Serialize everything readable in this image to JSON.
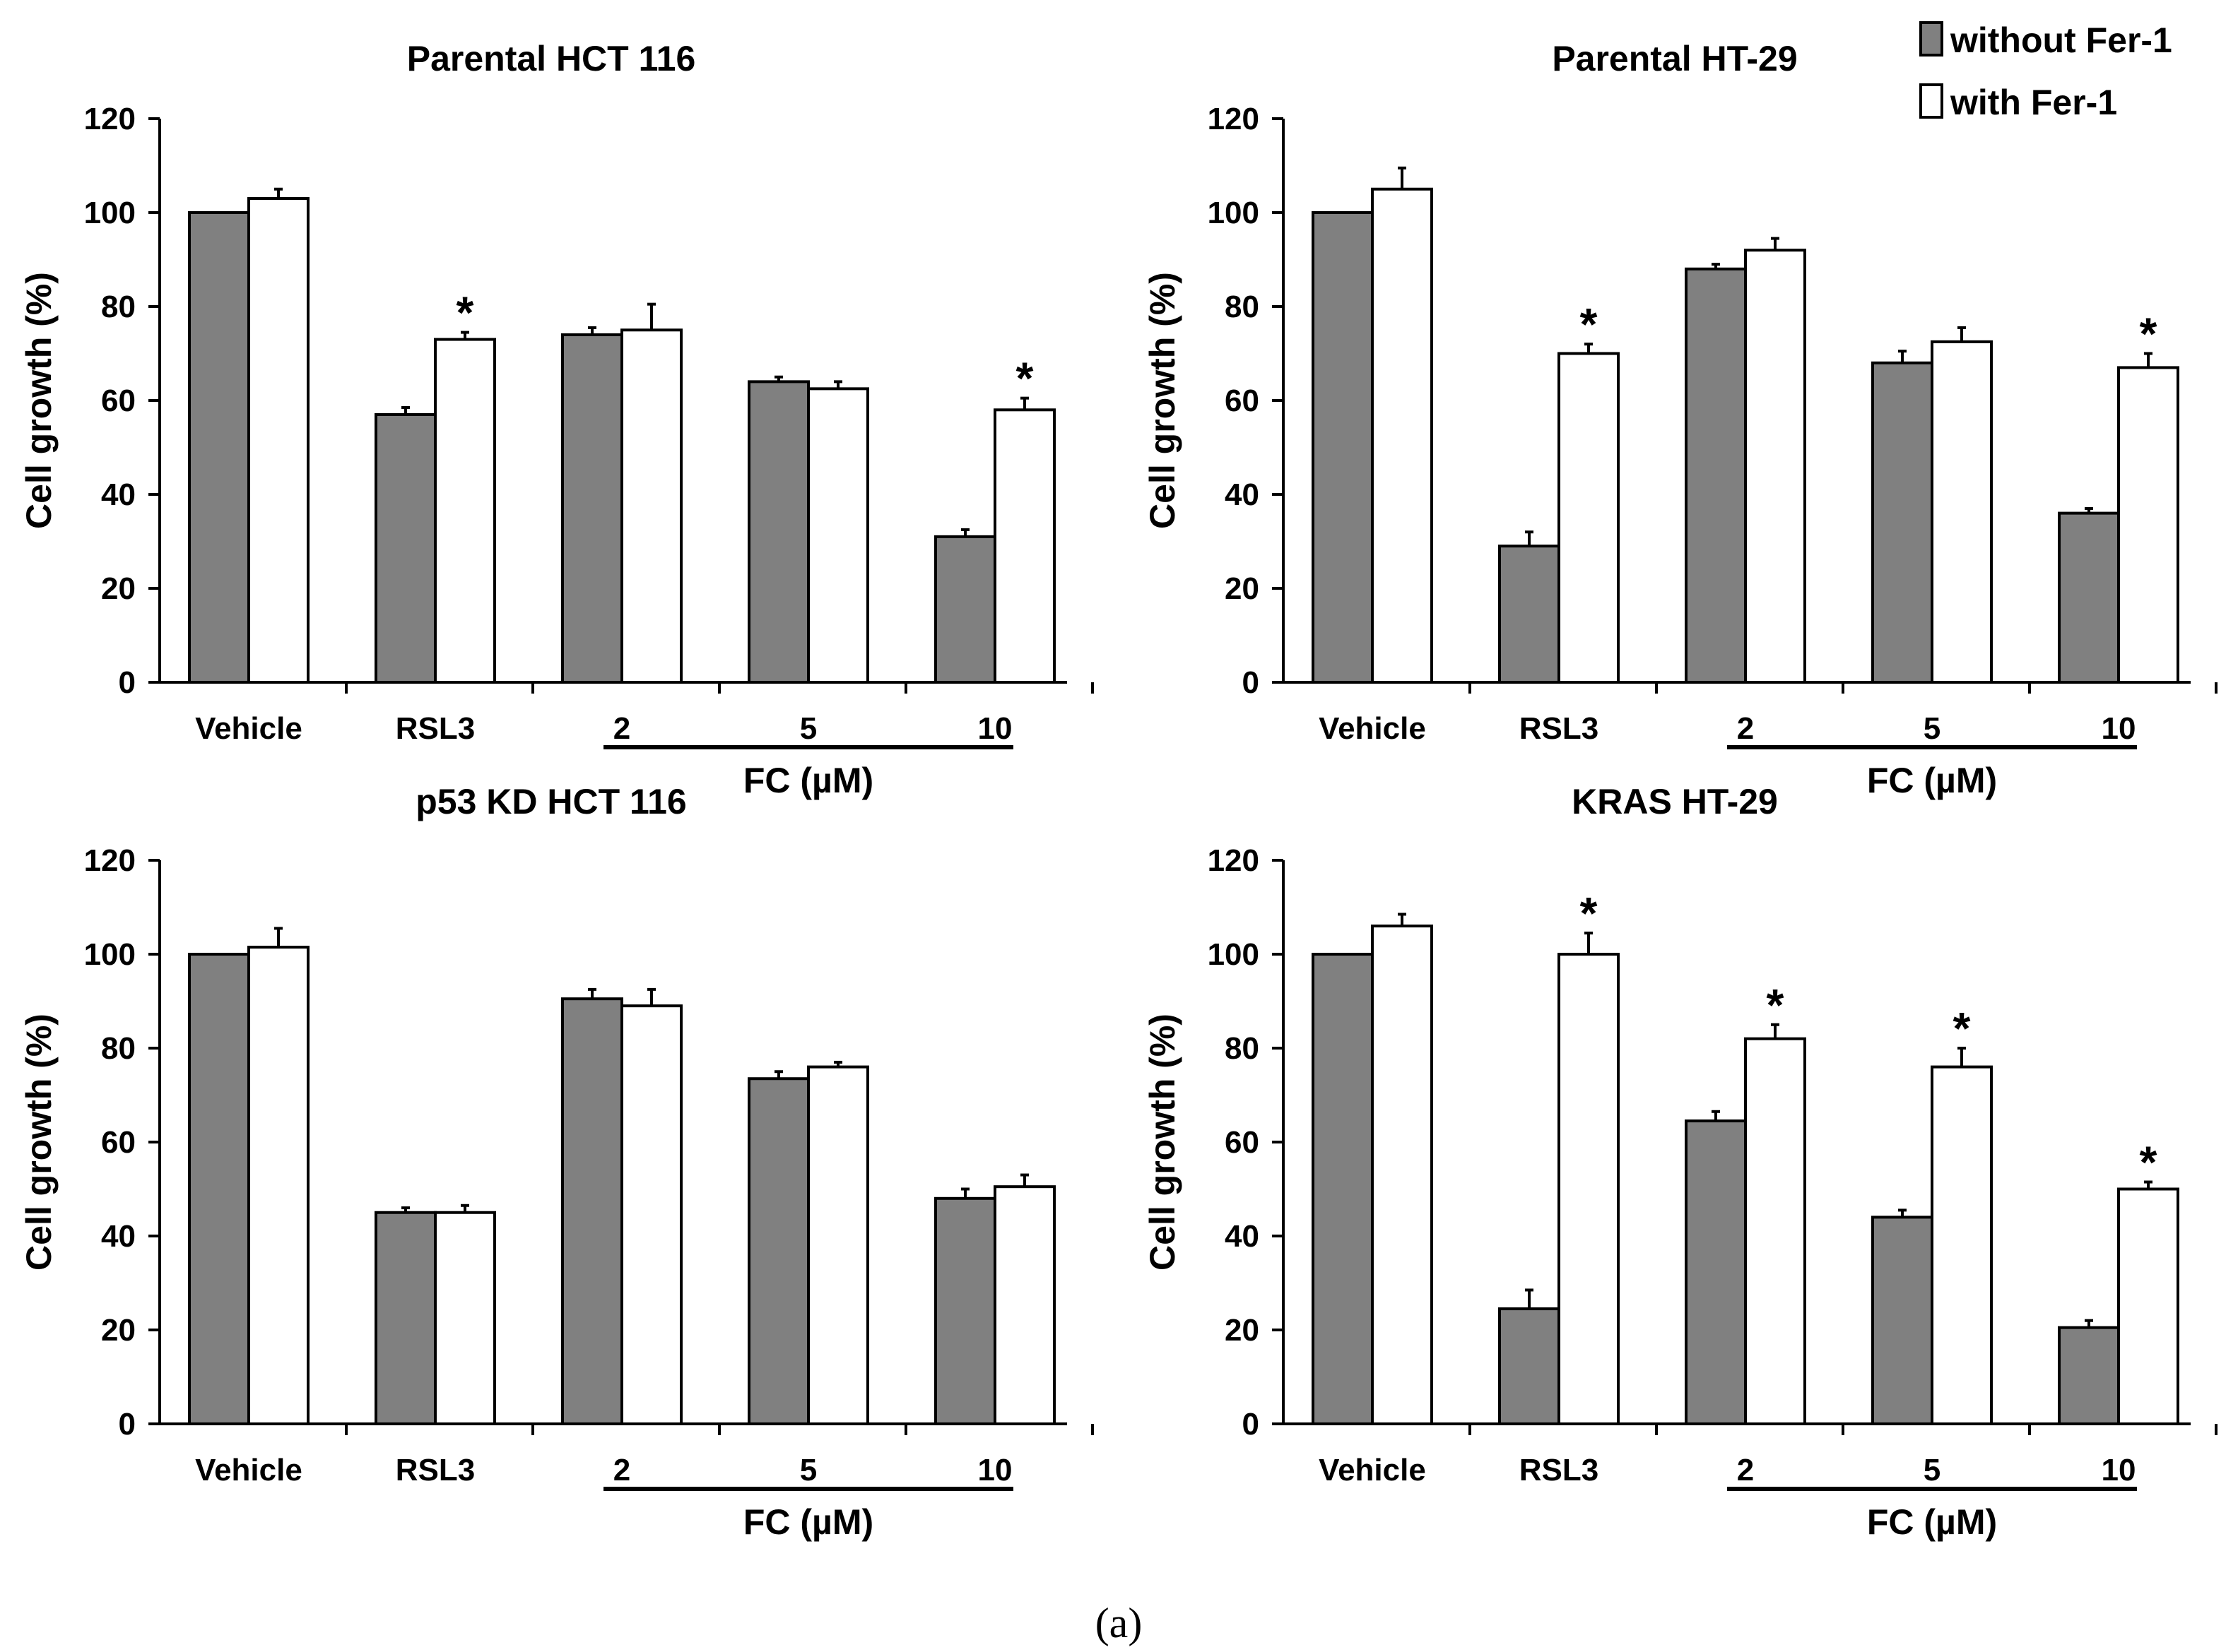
{
  "legend": [
    {
      "label": "without Fer-1",
      "color": "#808080"
    },
    {
      "label": "with Fer-1",
      "color": "#ffffff"
    }
  ],
  "caption": "(a)",
  "colors": {
    "without": "#808080",
    "with": "#ffffff",
    "stroke": "#000000"
  },
  "chart_data": [
    {
      "type": "bar",
      "title": "Parental HCT 116",
      "ylabel": "Cell growth (%)",
      "xlabel": "",
      "ylim": [
        0,
        120
      ],
      "yticks": [
        0,
        20,
        40,
        60,
        80,
        100,
        120
      ],
      "categories": [
        "Vehicle",
        "RSL3",
        "2",
        "5",
        "10"
      ],
      "group_label": "FC (µM)",
      "series": [
        {
          "name": "without Fer-1",
          "values": [
            100,
            57,
            74,
            64,
            31
          ],
          "errors": [
            0,
            1.5,
            1.5,
            1,
            1.5
          ]
        },
        {
          "name": "with Fer-1",
          "values": [
            103,
            73,
            75,
            62.5,
            58
          ],
          "errors": [
            2,
            1.5,
            5.5,
            1.5,
            2.5
          ]
        }
      ],
      "significance": [
        false,
        true,
        false,
        false,
        true
      ]
    },
    {
      "type": "bar",
      "title": "Parental HT-29",
      "ylabel": "Cell growth (%)",
      "xlabel": "",
      "ylim": [
        0,
        120
      ],
      "yticks": [
        0,
        20,
        40,
        60,
        80,
        100,
        120
      ],
      "categories": [
        "Vehicle",
        "RSL3",
        "2",
        "5",
        "10"
      ],
      "group_label": "FC (µM)",
      "series": [
        {
          "name": "without Fer-1",
          "values": [
            100,
            29,
            88,
            68,
            36
          ],
          "errors": [
            0,
            3,
            1,
            2.5,
            1
          ]
        },
        {
          "name": "with Fer-1",
          "values": [
            105,
            70,
            92,
            72.5,
            67
          ],
          "errors": [
            4.5,
            2,
            2.5,
            3,
            3
          ]
        }
      ],
      "significance": [
        false,
        true,
        false,
        false,
        true
      ]
    },
    {
      "type": "bar",
      "title": "p53 KD HCT 116",
      "ylabel": "Cell growth (%)",
      "xlabel": "",
      "ylim": [
        0,
        120
      ],
      "yticks": [
        0,
        20,
        40,
        60,
        80,
        100,
        120
      ],
      "categories": [
        "Vehicle",
        "RSL3",
        "2",
        "5",
        "10"
      ],
      "group_label": "FC (µM)",
      "series": [
        {
          "name": "without Fer-1",
          "values": [
            100,
            45,
            90.5,
            73.5,
            48
          ],
          "errors": [
            0,
            1,
            2,
            1.5,
            2
          ]
        },
        {
          "name": "with Fer-1",
          "values": [
            101.5,
            45,
            89,
            76,
            50.5
          ],
          "errors": [
            4,
            1.5,
            3.5,
            1,
            2.5
          ]
        }
      ],
      "significance": [
        false,
        false,
        false,
        false,
        false
      ]
    },
    {
      "type": "bar",
      "title": "KRAS HT-29",
      "ylabel": "Cell growth (%)",
      "xlabel": "",
      "ylim": [
        0,
        120
      ],
      "yticks": [
        0,
        20,
        40,
        60,
        80,
        100,
        120
      ],
      "categories": [
        "Vehicle",
        "RSL3",
        "2",
        "5",
        "10"
      ],
      "group_label": "FC (µM)",
      "series": [
        {
          "name": "without Fer-1",
          "values": [
            100,
            24.5,
            64.5,
            44,
            20.5
          ],
          "errors": [
            0,
            4,
            2,
            1.5,
            1.5
          ]
        },
        {
          "name": "with Fer-1",
          "values": [
            106,
            100,
            82,
            76,
            50
          ],
          "errors": [
            2.5,
            4.5,
            3,
            4,
            1.5
          ]
        }
      ],
      "significance": [
        false,
        true,
        true,
        true,
        true
      ]
    }
  ]
}
